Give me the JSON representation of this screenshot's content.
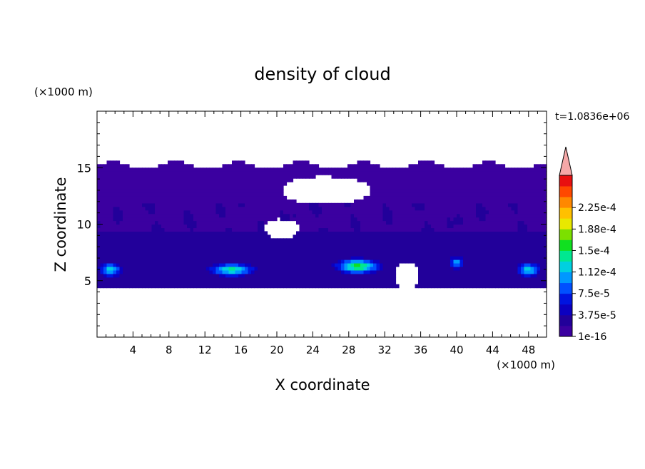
{
  "chart_data": {
    "type": "heatmap",
    "title": "density of cloud",
    "xlabel": "X coordinate",
    "ylabel": "Z coordinate",
    "x_unit": "(×1000 m)",
    "y_unit": "(×1000 m)",
    "time_label": "t=1.0836e+06",
    "xlim": [
      0,
      50
    ],
    "ylim": [
      0,
      20
    ],
    "x_ticks": [
      4,
      8,
      12,
      16,
      20,
      24,
      28,
      32,
      36,
      40,
      44,
      48
    ],
    "y_ticks": [
      5,
      10,
      15
    ],
    "colorbar": {
      "labels": [
        "1e-16",
        "3.75e-5",
        "7.5e-5",
        "1.12e-4",
        "1.5e-4",
        "1.88e-4",
        "2.25e-4"
      ],
      "colors": [
        "#3b00a0",
        "#22009a",
        "#0c00c0",
        "#0014e0",
        "#0050ff",
        "#0098ff",
        "#00d0e0",
        "#00e890",
        "#10e020",
        "#7ce000",
        "#e8e800",
        "#ffc000",
        "#ff8800",
        "#ff4800",
        "#e81010"
      ],
      "extend_color": "#f5a8a8",
      "extend": "max"
    },
    "field": {
      "background_band": {
        "z": [
          4.5,
          15.2
        ],
        "level": 0
      },
      "dense_cores": [
        {
          "x": 1.5,
          "z": 6.0,
          "width": 3.0,
          "height": 1.5,
          "max_level": 6
        },
        {
          "x": 15.0,
          "z": 6.0,
          "width": 6.0,
          "height": 1.4,
          "max_level": 7
        },
        {
          "x": 29.0,
          "z": 6.3,
          "width": 6.0,
          "height": 1.6,
          "max_level": 8
        },
        {
          "x": 40.0,
          "z": 6.6,
          "width": 2.0,
          "height": 1.2,
          "max_level": 5
        },
        {
          "x": 48.0,
          "z": 6.0,
          "width": 3.0,
          "height": 1.5,
          "max_level": 6
        }
      ],
      "clear_regions": [
        {
          "x": 25.5,
          "z": 13.0,
          "width": 10.0,
          "height": 2.5
        },
        {
          "x": 20.5,
          "z": 9.6,
          "width": 4.0,
          "height": 1.8
        },
        {
          "x": 34.5,
          "z": 5.5,
          "width": 2.5,
          "height": 2.5
        }
      ]
    }
  }
}
